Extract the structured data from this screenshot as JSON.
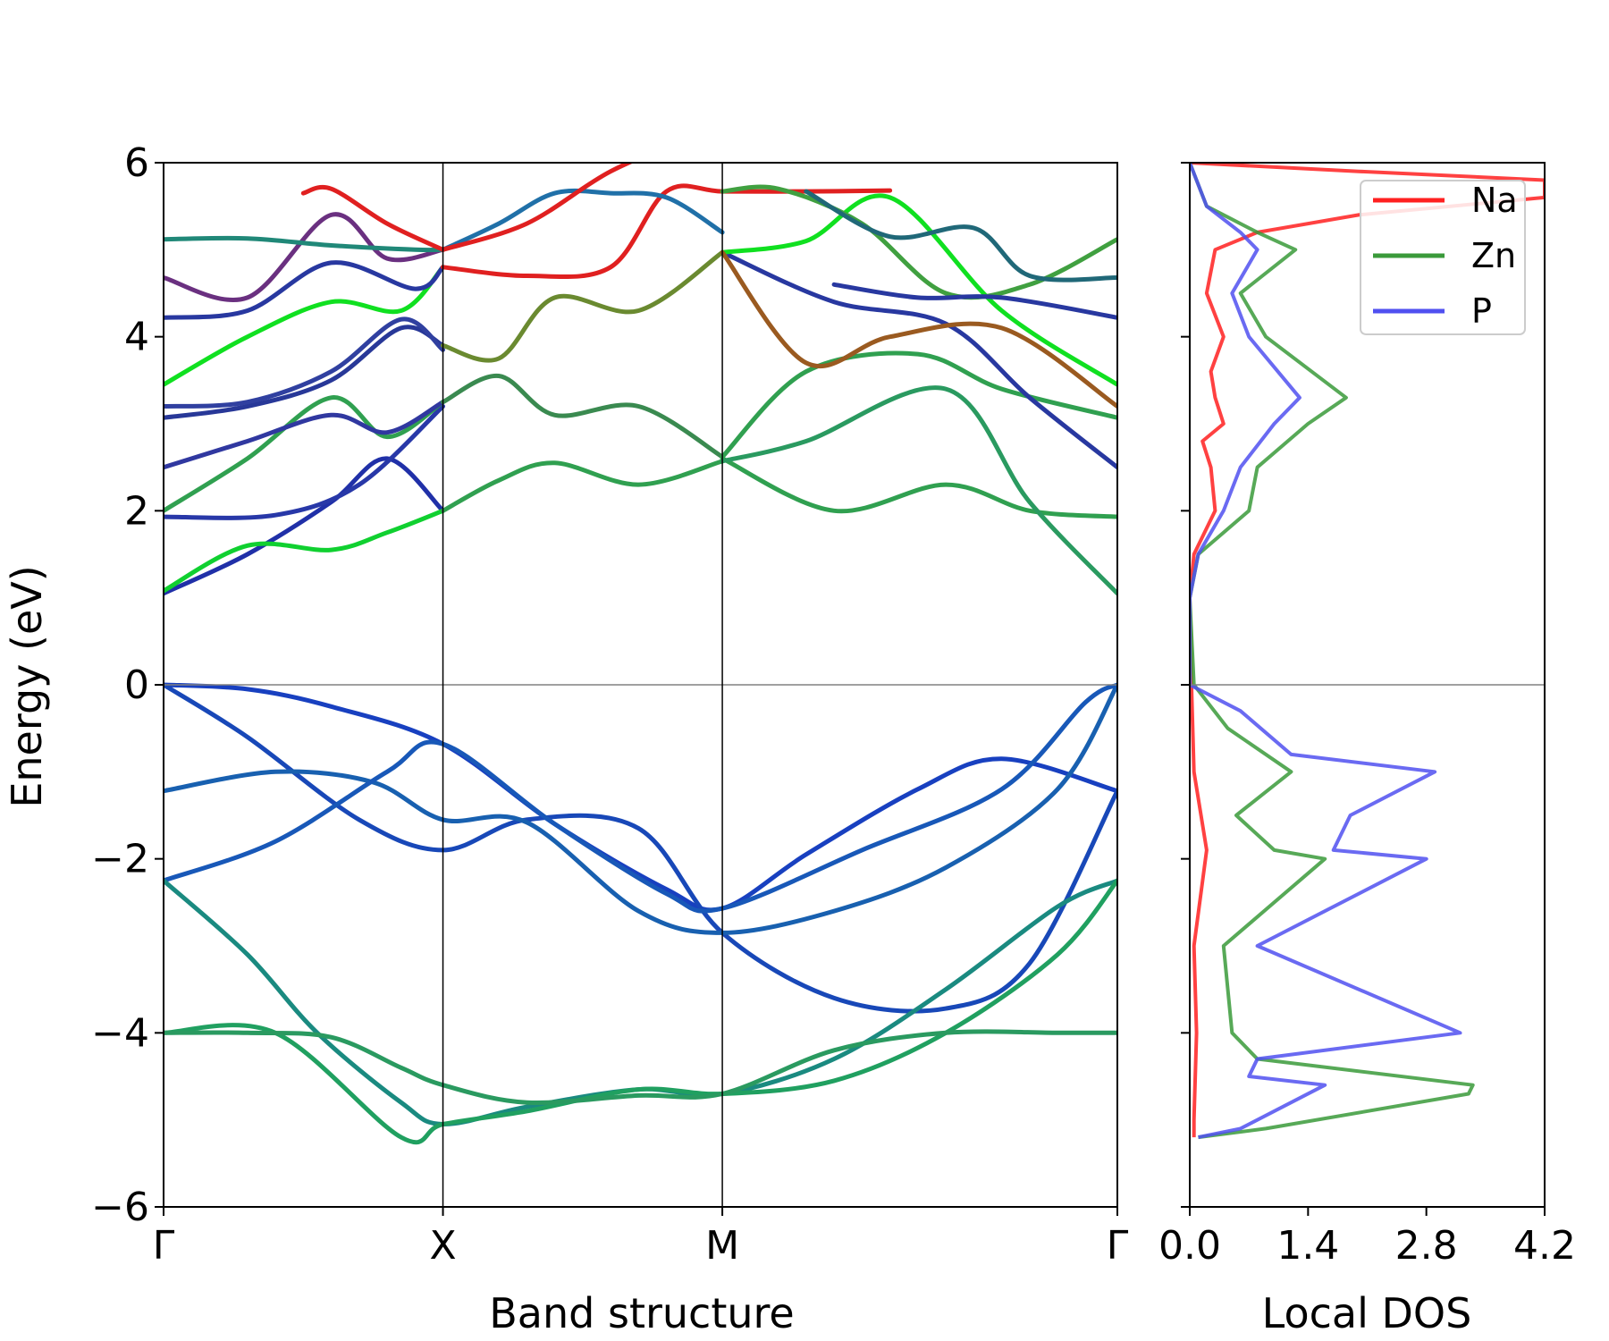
{
  "chart_data": [
    {
      "type": "line",
      "subtype": "band-structure",
      "xlabel": "Band structure",
      "ylabel": "Energy (eV)",
      "ylim": [
        -6,
        6
      ],
      "yticks": [
        6,
        4,
        2,
        0,
        -2,
        -4,
        -6
      ],
      "ytick_labels": [
        "6",
        "4",
        "2",
        "0",
        "−2",
        "−4",
        "−6"
      ],
      "kpoints": [
        {
          "label": "Γ",
          "pos": 0
        },
        {
          "label": "X",
          "pos": 1
        },
        {
          "label": "M",
          "pos": 2
        },
        {
          "label": "Γ",
          "pos": 3.414
        }
      ],
      "fermi_level": 0,
      "series": [
        {
          "color": "#1840c0",
          "x": [
            0,
            0.3,
            0.6,
            1.0,
            1.4,
            1.8,
            2.0,
            2.3,
            2.7,
            3.0,
            3.414
          ],
          "y": [
            0.0,
            -0.05,
            -0.25,
            -0.68,
            -1.6,
            -2.35,
            -2.57,
            -1.95,
            -1.2,
            -0.85,
            -1.22
          ]
        },
        {
          "color": "#1848b8",
          "x": [
            0,
            0.3,
            0.7,
            1.0,
            1.3,
            1.7,
            2.0,
            2.4,
            2.8,
            3.1,
            3.414
          ],
          "y": [
            0.0,
            -0.6,
            -1.55,
            -1.9,
            -1.55,
            -1.65,
            -2.85,
            -3.6,
            -3.72,
            -3.2,
            -1.22
          ]
        },
        {
          "color": "#1860b0",
          "x": [
            0,
            0.4,
            0.75,
            1.0,
            1.3,
            1.7,
            2.0,
            2.4,
            2.8,
            3.2,
            3.414
          ],
          "y": [
            -1.22,
            -1.0,
            -1.12,
            -1.55,
            -1.58,
            -2.6,
            -2.85,
            -2.6,
            -2.1,
            -1.2,
            0.0
          ]
        },
        {
          "color": "#1858b8",
          "x": [
            0,
            0.4,
            0.8,
            1.0,
            1.4,
            1.8,
            2.0,
            2.5,
            3.0,
            3.3,
            3.414
          ],
          "y": [
            -2.25,
            -1.8,
            -1.0,
            -0.68,
            -1.6,
            -2.4,
            -2.57,
            -1.9,
            -1.2,
            -0.2,
            0.0
          ]
        },
        {
          "color": "#1a8a80",
          "x": [
            0,
            0.3,
            0.55,
            0.85,
            1.0,
            1.3,
            1.7,
            2.0,
            2.4,
            2.8,
            3.2,
            3.414
          ],
          "y": [
            -2.25,
            -3.1,
            -4.0,
            -4.8,
            -5.05,
            -4.85,
            -4.65,
            -4.7,
            -4.3,
            -3.5,
            -2.55,
            -2.25
          ]
        },
        {
          "color": "#20a060",
          "x": [
            0,
            0.4,
            0.85,
            1.0,
            1.3,
            1.7,
            2.0,
            2.4,
            2.8,
            3.2,
            3.414
          ],
          "y": [
            -4.0,
            -4.0,
            -5.2,
            -5.05,
            -4.9,
            -4.65,
            -4.7,
            -4.55,
            -4.0,
            -3.1,
            -2.25
          ]
        },
        {
          "color": "#2a9a60",
          "x": [
            0,
            0.3,
            0.6,
            0.85,
            1.0,
            1.3,
            1.7,
            2.0,
            2.4,
            2.8,
            3.2,
            3.414
          ],
          "y": [
            -4.0,
            -4.0,
            -4.05,
            -4.4,
            -4.6,
            -4.8,
            -4.72,
            -4.7,
            -4.2,
            -4.0,
            -4.0,
            -4.0
          ]
        },
        {
          "color": "#2030a8",
          "x": [
            0,
            0.3,
            0.6,
            0.8,
            1.0
          ],
          "y": [
            1.05,
            1.5,
            2.1,
            2.6,
            2.0
          ]
        },
        {
          "color": "#10d030",
          "x": [
            0,
            0.3,
            0.6,
            0.8,
            1.0
          ],
          "y": [
            1.08,
            1.6,
            1.55,
            1.75,
            2.0
          ]
        },
        {
          "color": "#2838a8",
          "x": [
            0,
            0.4,
            0.7,
            1.0
          ],
          "y": [
            1.93,
            1.95,
            2.3,
            3.2
          ]
        },
        {
          "color": "#30a050",
          "x": [
            0,
            0.3,
            0.6,
            0.8,
            1.0
          ],
          "y": [
            2.0,
            2.6,
            3.3,
            2.85,
            3.25
          ]
        },
        {
          "color": "#3038a0",
          "x": [
            0,
            0.3,
            0.6,
            0.8,
            1.0
          ],
          "y": [
            2.5,
            2.8,
            3.1,
            2.9,
            3.25
          ]
        },
        {
          "color": "#283898",
          "x": [
            0,
            0.3,
            0.6,
            0.85,
            1.0
          ],
          "y": [
            3.07,
            3.2,
            3.5,
            4.1,
            3.9
          ]
        },
        {
          "color": "#3040a0",
          "x": [
            0,
            0.3,
            0.6,
            0.85,
            1.0
          ],
          "y": [
            3.2,
            3.25,
            3.6,
            4.2,
            3.85
          ]
        },
        {
          "color": "#10e020",
          "x": [
            0,
            0.3,
            0.6,
            0.85,
            1.0
          ],
          "y": [
            3.45,
            4.0,
            4.4,
            4.3,
            4.8
          ]
        },
        {
          "color": "#2838a0",
          "x": [
            0,
            0.3,
            0.6,
            0.9,
            1.0
          ],
          "y": [
            4.22,
            4.3,
            4.85,
            4.55,
            4.8
          ]
        },
        {
          "color": "#6a3080",
          "x": [
            0,
            0.3,
            0.6,
            0.8,
            1.0
          ],
          "y": [
            4.68,
            4.45,
            5.4,
            4.9,
            5.0
          ]
        },
        {
          "color": "#208878",
          "x": [
            0,
            0.3,
            0.6,
            0.9,
            1.0
          ],
          "y": [
            5.12,
            5.13,
            5.05,
            5.0,
            5.0
          ]
        },
        {
          "color": "#e02020",
          "x": [
            0.5,
            0.6,
            0.8,
            1.0
          ],
          "y": [
            5.65,
            5.7,
            5.3,
            5.0
          ]
        },
        {
          "color": "#30a050",
          "x": [
            1.0,
            1.2,
            1.4,
            1.7,
            2.0
          ],
          "y": [
            2.0,
            2.35,
            2.55,
            2.3,
            2.57
          ]
        },
        {
          "color": "#3a8a50",
          "x": [
            1.0,
            1.2,
            1.4,
            1.7,
            2.0
          ],
          "y": [
            3.25,
            3.55,
            3.1,
            3.2,
            2.62
          ]
        },
        {
          "color": "#6a8a30",
          "x": [
            1.0,
            1.2,
            1.4,
            1.7,
            2.0
          ],
          "y": [
            3.9,
            3.75,
            4.45,
            4.3,
            4.97
          ]
        },
        {
          "color": "#e02020",
          "x": [
            1.0,
            1.3,
            1.6,
            1.8,
            2.0,
            2.3,
            2.6
          ],
          "y": [
            4.8,
            4.7,
            4.8,
            5.67,
            5.67,
            5.67,
            5.68
          ]
        },
        {
          "color": "#2070a8",
          "x": [
            1.0,
            1.2,
            1.4,
            1.6,
            1.8,
            2.0
          ],
          "y": [
            5.0,
            5.3,
            5.65,
            5.65,
            5.6,
            5.2
          ]
        },
        {
          "color": "#e02020",
          "x": [
            1.0,
            1.3,
            1.6,
            1.9,
            2.0
          ],
          "y": [
            5.0,
            5.3,
            5.9,
            6.3,
            6.4
          ]
        },
        {
          "color": "#30a050",
          "x": [
            2.0,
            2.4,
            2.8,
            3.1,
            3.414
          ],
          "y": [
            2.6,
            2.0,
            2.3,
            2.0,
            1.93
          ]
        },
        {
          "color": "#2a9a60",
          "x": [
            2.0,
            2.3,
            2.8,
            3.1,
            3.414
          ],
          "y": [
            2.57,
            2.8,
            3.4,
            2.1,
            1.05
          ]
        },
        {
          "color": "#30a050",
          "x": [
            2.0,
            2.3,
            2.7,
            3.0,
            3.414
          ],
          "y": [
            2.62,
            3.6,
            3.8,
            3.4,
            3.07
          ]
        },
        {
          "color": "#2838a0",
          "x": [
            2.0,
            2.4,
            2.8,
            3.1,
            3.414
          ],
          "y": [
            4.97,
            4.4,
            4.15,
            3.3,
            2.5
          ]
        },
        {
          "color": "#10e020",
          "x": [
            2.0,
            2.3,
            2.6,
            3.0,
            3.414
          ],
          "y": [
            4.97,
            5.1,
            5.6,
            4.3,
            3.45
          ]
        },
        {
          "color": "#9a5a20",
          "x": [
            2.0,
            2.3,
            2.6,
            3.0,
            3.414
          ],
          "y": [
            4.97,
            3.7,
            4.0,
            4.1,
            3.2
          ]
        },
        {
          "color": "#40a040",
          "x": [
            2.0,
            2.2,
            2.5,
            2.8,
            3.1,
            3.414
          ],
          "y": [
            5.67,
            5.7,
            5.3,
            4.5,
            4.6,
            5.12
          ]
        },
        {
          "color": "#206878",
          "x": [
            2.3,
            2.6,
            2.9,
            3.1,
            3.414
          ],
          "y": [
            5.67,
            5.15,
            5.25,
            4.7,
            4.68
          ]
        },
        {
          "color": "#2838a0",
          "x": [
            2.4,
            2.7,
            3.0,
            3.414
          ],
          "y": [
            4.6,
            4.45,
            4.45,
            4.22
          ]
        }
      ]
    },
    {
      "type": "line",
      "subtype": "density-of-states",
      "xlabel": "Local DOS",
      "xlim": [
        0,
        4.2
      ],
      "xticks": [
        0,
        1.4,
        2.8,
        4.2
      ],
      "xtick_labels": [
        "0.0",
        "1.4",
        "2.8",
        "4.2"
      ],
      "ylim": [
        -6,
        6
      ],
      "legend": {
        "placement": "upper right",
        "entries": [
          "Na",
          "Zn",
          "P"
        ]
      },
      "series": [
        {
          "name": "Na",
          "color": "#ff2020",
          "y": [
            -5.2,
            -5.0,
            -4.0,
            -3.0,
            -1.9,
            -1.0,
            0.0,
            1.0,
            1.5,
            2.0,
            2.5,
            2.8,
            3.0,
            3.3,
            3.6,
            4.0,
            4.5,
            5.0,
            5.2,
            5.4,
            5.6,
            5.8,
            5.9,
            6.0
          ],
          "x": [
            0.05,
            0.05,
            0.08,
            0.05,
            0.2,
            0.05,
            0.02,
            0.0,
            0.05,
            0.3,
            0.25,
            0.15,
            0.4,
            0.3,
            0.25,
            0.4,
            0.2,
            0.3,
            0.8,
            2.0,
            4.2,
            4.2,
            2.0,
            0.0
          ]
        },
        {
          "name": "Zn",
          "color": "#3a9a3a",
          "y": [
            -5.2,
            -5.1,
            -4.7,
            -4.6,
            -4.3,
            -4.0,
            -3.0,
            -2.0,
            -1.9,
            -1.5,
            -1.0,
            -0.5,
            0.0,
            1.0,
            1.5,
            2.0,
            2.5,
            3.0,
            3.3,
            4.0,
            4.5,
            5.0,
            5.2,
            5.5,
            6.0
          ],
          "x": [
            0.1,
            0.9,
            3.3,
            3.35,
            0.8,
            0.5,
            0.4,
            1.6,
            1.0,
            0.55,
            1.2,
            0.45,
            0.05,
            0.0,
            0.1,
            0.7,
            0.8,
            1.4,
            1.85,
            0.9,
            0.6,
            1.25,
            0.8,
            0.2,
            0.0
          ]
        },
        {
          "name": "P",
          "color": "#5050f0",
          "y": [
            -5.2,
            -5.1,
            -4.6,
            -4.5,
            -4.3,
            -4.0,
            -3.0,
            -2.0,
            -1.9,
            -1.5,
            -1.0,
            -0.8,
            -0.3,
            0.0,
            1.0,
            1.5,
            2.0,
            2.5,
            3.0,
            3.3,
            4.0,
            4.5,
            5.0,
            5.2,
            5.5,
            6.0
          ],
          "x": [
            0.1,
            0.6,
            1.6,
            0.7,
            0.8,
            3.2,
            0.8,
            2.8,
            1.7,
            1.9,
            2.9,
            1.2,
            0.6,
            0.0,
            0.0,
            0.1,
            0.4,
            0.6,
            1.0,
            1.3,
            0.7,
            0.5,
            0.8,
            0.6,
            0.2,
            0.0
          ]
        }
      ]
    }
  ]
}
